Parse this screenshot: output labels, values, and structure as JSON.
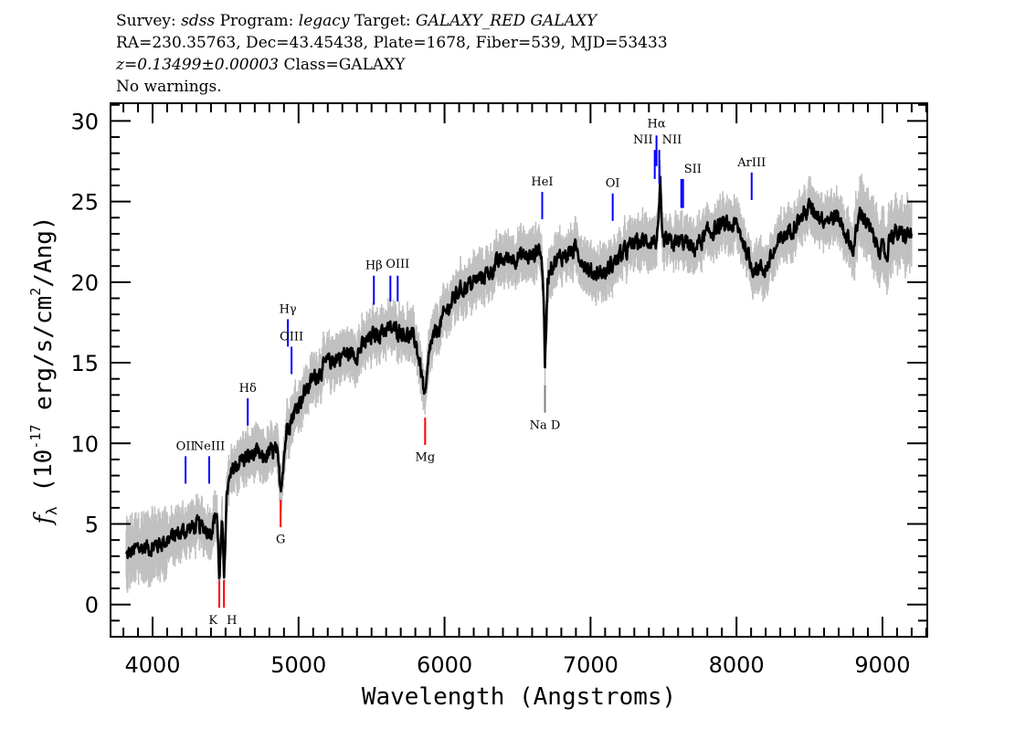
{
  "header": {
    "line1": {
      "survey_label": "Survey: ",
      "survey": "sdss",
      "program_label": " Program: ",
      "program": "legacy",
      "target_label": " Target: ",
      "target": "GALAXY_RED GALAXY"
    },
    "line2": "RA=230.35763, Dec=43.45438, Plate=1678, Fiber=539, MJD=53433",
    "line3": {
      "redshift": "z=0.13499±0.00003",
      "class": " Class=GALAXY"
    },
    "line4": "No warnings."
  },
  "chart_data": {
    "type": "line",
    "xlabel": "Wavelength (Angstroms)",
    "ylabel": {
      "f": "f",
      "sub": "λ",
      "pre": " (10",
      "exp": "-17",
      "mid": " erg/s/cm",
      "exp2": "2",
      "post": "/Ang)"
    },
    "xlim": [
      3712,
      9307
    ],
    "ylim": [
      -2.0,
      31.1
    ],
    "xticks": [
      4000,
      5000,
      6000,
      7000,
      8000,
      9000
    ],
    "xtick_labels": [
      "4000",
      "5000",
      "6000",
      "7000",
      "8000",
      "9000"
    ],
    "yticks": [
      0,
      5,
      10,
      15,
      20,
      25,
      30
    ],
    "ytick_labels": [
      "0",
      "5",
      "10",
      "15",
      "20",
      "25",
      "30"
    ],
    "x_minor_step": 100,
    "y_minor_step": 1,
    "grid": false,
    "colors": {
      "flux": "#000000",
      "error": "#c0c0c0",
      "emission": "#0000ff",
      "absorption": "#ff0000",
      "sky": "#808080"
    },
    "series": {
      "wavelength": [
        3820,
        3900,
        4000,
        4100,
        4200,
        4300,
        4400,
        4440,
        4457,
        4475,
        4489,
        4510,
        4550,
        4600,
        4650,
        4700,
        4750,
        4800,
        4850,
        4877,
        4920,
        5000,
        5100,
        5200,
        5300,
        5400,
        5500,
        5600,
        5700,
        5800,
        5840,
        5867,
        5900,
        6000,
        6100,
        6200,
        6300,
        6400,
        6500,
        6600,
        6650,
        6675,
        6688,
        6705,
        6720,
        6800,
        6900,
        7000,
        7100,
        7200,
        7300,
        7400,
        7440,
        7462,
        7477,
        7490,
        7550,
        7650,
        7700,
        7800,
        7900,
        8000,
        8050,
        8100,
        8200,
        8300,
        8400,
        8500,
        8600,
        8700,
        8750,
        8800,
        8850,
        8900,
        8950,
        9000,
        9030,
        9050,
        9100,
        9150,
        9200
      ],
      "flux": [
        3.0,
        3.5,
        3.6,
        4.0,
        4.5,
        4.9,
        4.6,
        5.8,
        1.7,
        5.0,
        2.0,
        7.0,
        8.3,
        9.0,
        9.1,
        9.4,
        9.0,
        9.4,
        9.5,
        7.2,
        11.0,
        12.5,
        14.0,
        15.0,
        15.5,
        15.6,
        16.6,
        17.1,
        17.0,
        16.4,
        14.5,
        12.6,
        16.0,
        18.0,
        19.5,
        20.0,
        20.6,
        21.4,
        21.6,
        21.6,
        22.2,
        20.5,
        14.6,
        20.0,
        21.0,
        21.6,
        22.0,
        20.6,
        20.6,
        21.6,
        22.4,
        22.6,
        22.5,
        22.8,
        26.0,
        22.5,
        22.4,
        22.5,
        22.0,
        23.0,
        23.5,
        23.5,
        22.5,
        21.0,
        20.8,
        22.6,
        23.6,
        24.6,
        24.0,
        24.0,
        23.0,
        22.0,
        24.5,
        23.5,
        22.5,
        22.0,
        21.5,
        23.0,
        23.0,
        22.8,
        23.0
      ],
      "error_approx": 1.1
    },
    "lines": [
      {
        "label": "OII",
        "wavelength": 4226,
        "color": "emission",
        "marker": [
          7.5,
          9.2
        ],
        "text_flux": 9.6
      },
      {
        "label": "NeIII",
        "wavelength": 4388,
        "color": "emission",
        "marker": [
          7.5,
          9.2
        ],
        "text_flux": 9.6
      },
      {
        "label": "Hδ",
        "wavelength": 4652,
        "color": "emission",
        "marker": [
          11.1,
          12.8
        ],
        "text_flux": 13.2
      },
      {
        "label": "Hγ",
        "wavelength": 4927,
        "color": "emission",
        "marker": [
          16.0,
          17.7
        ],
        "text_flux": 18.1
      },
      {
        "label": "OIII",
        "wavelength": 4952,
        "color": "emission",
        "marker": [
          14.3,
          16.0
        ],
        "text_flux": 16.4
      },
      {
        "label": "Hβ",
        "wavelength": 5516,
        "color": "emission",
        "marker": [
          18.6,
          20.4
        ],
        "text_flux": 20.8
      },
      {
        "label": "",
        "wavelength": 5629,
        "color": "emission",
        "marker": [
          18.8,
          20.4
        ],
        "text_flux": 20.8
      },
      {
        "label": "OIII",
        "wavelength": 5679,
        "color": "emission",
        "marker": [
          18.8,
          20.4
        ],
        "text_flux": 20.9
      },
      {
        "label": "HeI",
        "wavelength": 6669,
        "color": "emission",
        "marker": [
          23.9,
          25.6
        ],
        "text_flux": 26.0
      },
      {
        "label": "OI",
        "wavelength": 7152,
        "color": "emission",
        "marker": [
          23.8,
          25.5
        ],
        "text_flux": 25.9
      },
      {
        "label": "NII",
        "wavelength": 7440,
        "color": "emission",
        "marker": [
          26.4,
          28.2
        ],
        "text_flux": 28.6,
        "anchor": "end"
      },
      {
        "label": "Hα",
        "wavelength": 7452,
        "color": "emission",
        "marker": [
          27.2,
          29.1
        ],
        "text_flux": 29.6
      },
      {
        "label": "NII",
        "wavelength": 7471,
        "color": "emission",
        "marker": [
          26.1,
          28.2
        ],
        "text_flux": 28.6,
        "anchor": "start"
      },
      {
        "label": "SII",
        "wavelength": 7622,
        "color": "emission",
        "marker": [
          24.6,
          26.4
        ],
        "text_flux": 26.8,
        "anchor": "start"
      },
      {
        "label": "",
        "wavelength": 7634,
        "color": "emission",
        "marker": [
          24.6,
          26.4
        ],
        "text_flux": 26.8
      },
      {
        "label": "ArIII",
        "wavelength": 8104,
        "color": "emission",
        "marker": [
          25.1,
          26.8
        ],
        "text_flux": 27.2
      },
      {
        "label": "K",
        "wavelength": 4457,
        "color": "absorption",
        "marker": [
          -0.2,
          1.5
        ],
        "text_flux": -1.2,
        "anchor": "end"
      },
      {
        "label": "H",
        "wavelength": 4489,
        "color": "absorption",
        "marker": [
          -0.2,
          1.5
        ],
        "text_flux": -1.2,
        "anchor": "start"
      },
      {
        "label": "G",
        "wavelength": 4877,
        "color": "absorption",
        "marker": [
          4.8,
          6.5
        ],
        "text_flux": 3.8
      },
      {
        "label": "Mg",
        "wavelength": 5867,
        "color": "absorption",
        "marker": [
          9.9,
          11.6
        ],
        "text_flux": 8.9
      },
      {
        "label": "Na D",
        "wavelength": 6688,
        "color": "sky",
        "marker": [
          11.9,
          13.6
        ],
        "text_flux": 10.9
      }
    ]
  }
}
